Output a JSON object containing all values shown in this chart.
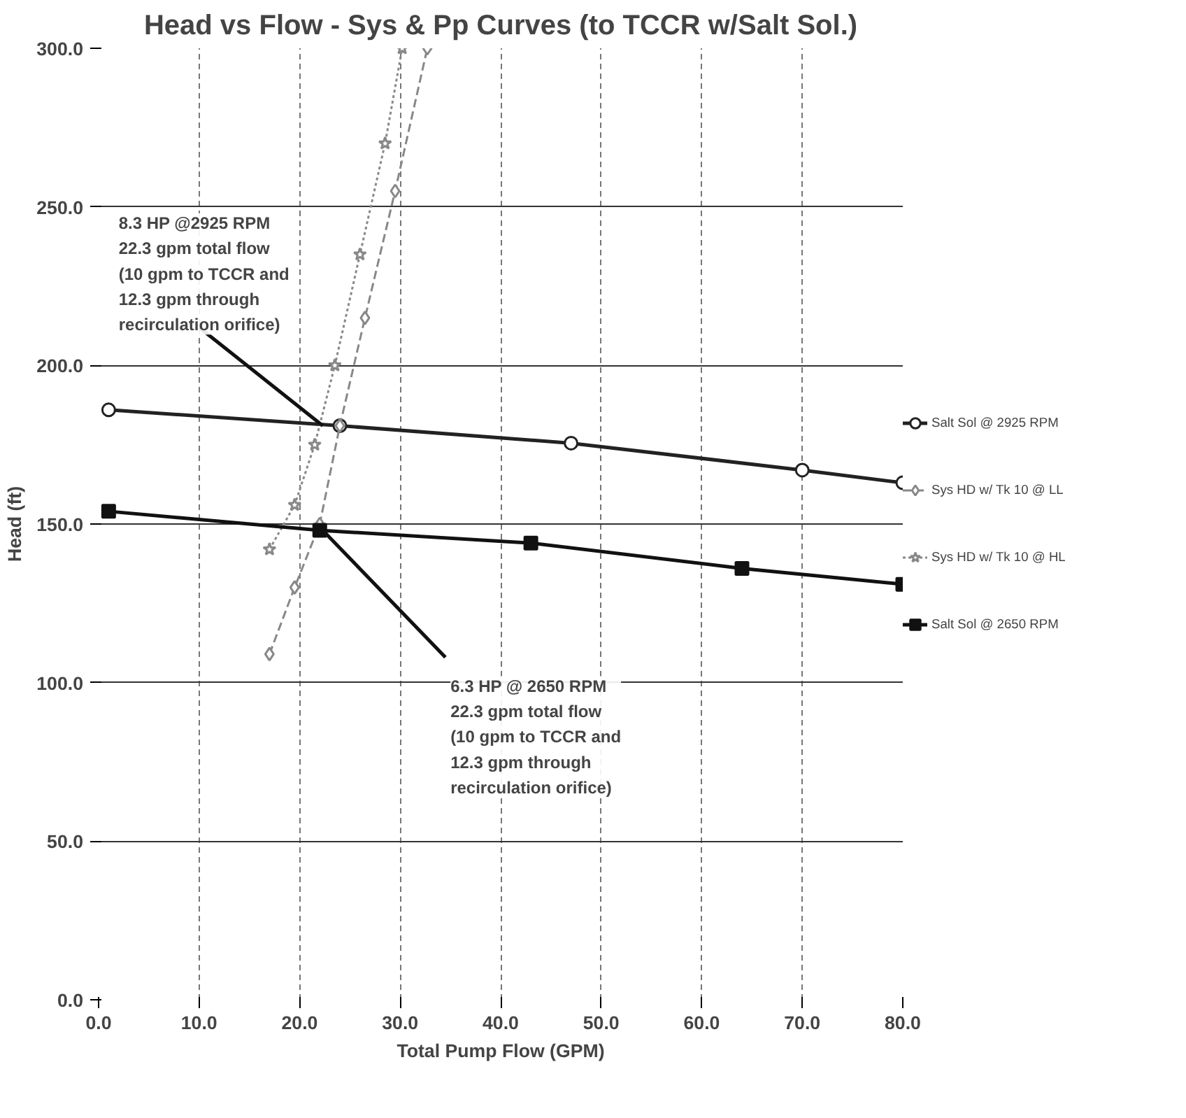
{
  "chart_data": {
    "type": "line",
    "title": "Head vs Flow - Sys & Pp Curves (to TCCR w/Salt Sol.)",
    "xlabel": "Total Pump Flow (GPM)",
    "ylabel": "Head (ft)",
    "xlim": [
      0,
      80
    ],
    "ylim": [
      0,
      300
    ],
    "xticks": [
      {
        "value": 0,
        "label": "0.0"
      },
      {
        "value": 10,
        "label": "10.0"
      },
      {
        "value": 20,
        "label": "20.0"
      },
      {
        "value": 30,
        "label": "30.0"
      },
      {
        "value": 40,
        "label": "40.0"
      },
      {
        "value": 50,
        "label": "50.0"
      },
      {
        "value": 60,
        "label": "60.0"
      },
      {
        "value": 70,
        "label": "70.0"
      },
      {
        "value": 80,
        "label": "80.0"
      }
    ],
    "yticks": [
      {
        "value": 0,
        "label": "0.0"
      },
      {
        "value": 50,
        "label": "50.0"
      },
      {
        "value": 100,
        "label": "100.0"
      },
      {
        "value": 150,
        "label": "150.0"
      },
      {
        "value": 200,
        "label": "200.0"
      },
      {
        "value": 250,
        "label": "250.0"
      },
      {
        "value": 300,
        "label": "300.0"
      }
    ],
    "grid": true,
    "legend": "right",
    "series": [
      {
        "name": "Salt Sol @ 2925 RPM",
        "color": "#222222",
        "marker": "circle",
        "line_style": "solid",
        "x": [
          1,
          24,
          47,
          70,
          80
        ],
        "values": [
          186,
          181,
          175.5,
          167,
          163
        ]
      },
      {
        "name": "Sys HD w/ Tk 10 @ LL",
        "color": "#888888",
        "marker": "diamond",
        "line_style": "dashed",
        "x": [
          17,
          19.5,
          22,
          24,
          26.5,
          29.5,
          32.7
        ],
        "values": [
          109,
          130,
          150,
          181,
          215,
          255,
          300
        ]
      },
      {
        "name": "Sys HD w/ Tk 10 @ HL",
        "color": "#888888",
        "marker": "star",
        "line_style": "dotted",
        "x": [
          17,
          19.5,
          21.5,
          23.5,
          26,
          28.5,
          30.2
        ],
        "values": [
          142,
          156,
          175,
          200,
          235,
          270,
          300
        ]
      },
      {
        "name": "Salt Sol @ 2650 RPM",
        "color": "#111111",
        "marker": "square",
        "line_style": "solid",
        "x": [
          1,
          22,
          43,
          64,
          80
        ],
        "values": [
          154,
          148,
          144,
          136,
          131
        ]
      }
    ],
    "annotations": [
      {
        "text": "8.3 HP @2925 RPM\n22.3 gpm total flow\n(10 gpm to TCCR and\n12.3 gpm through\nrecirculation orifice)",
        "x": 22.3,
        "y": 181
      },
      {
        "text": "6.3 HP @ 2650 RPM\n22.3 gpm total flow\n(10 gpm to TCCR and\n12.3 gpm through\nrecirculation orifice)",
        "x": 22.3,
        "y": 148
      }
    ]
  }
}
